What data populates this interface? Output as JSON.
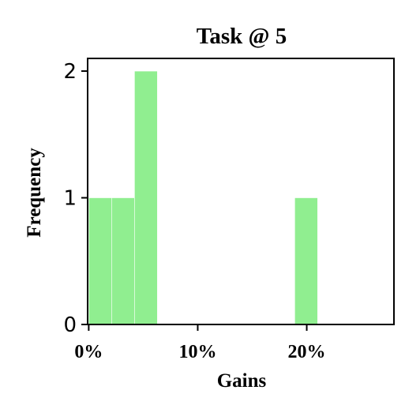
{
  "chart_data": {
    "type": "bar",
    "title": "Task @ 5",
    "xlabel": "Gains",
    "ylabel": "Frequency",
    "bin_edges": [
      0.0,
      0.021,
      0.042,
      0.063,
      0.084,
      0.105,
      0.126,
      0.147,
      0.168,
      0.189,
      0.21
    ],
    "values": [
      1,
      1,
      2,
      0,
      0,
      0,
      0,
      0,
      0,
      1
    ],
    "xlim": [
      -0.001,
      0.28
    ],
    "ylim": [
      0,
      2.1
    ],
    "xticks": [
      0.0,
      0.1,
      0.2
    ],
    "xtick_labels": [
      "0%",
      "10%",
      "20%"
    ],
    "yticks": [
      0,
      1,
      2
    ],
    "ytick_labels": [
      "0",
      "1",
      "2"
    ],
    "bar_color": "#90ee90",
    "grid": false
  }
}
